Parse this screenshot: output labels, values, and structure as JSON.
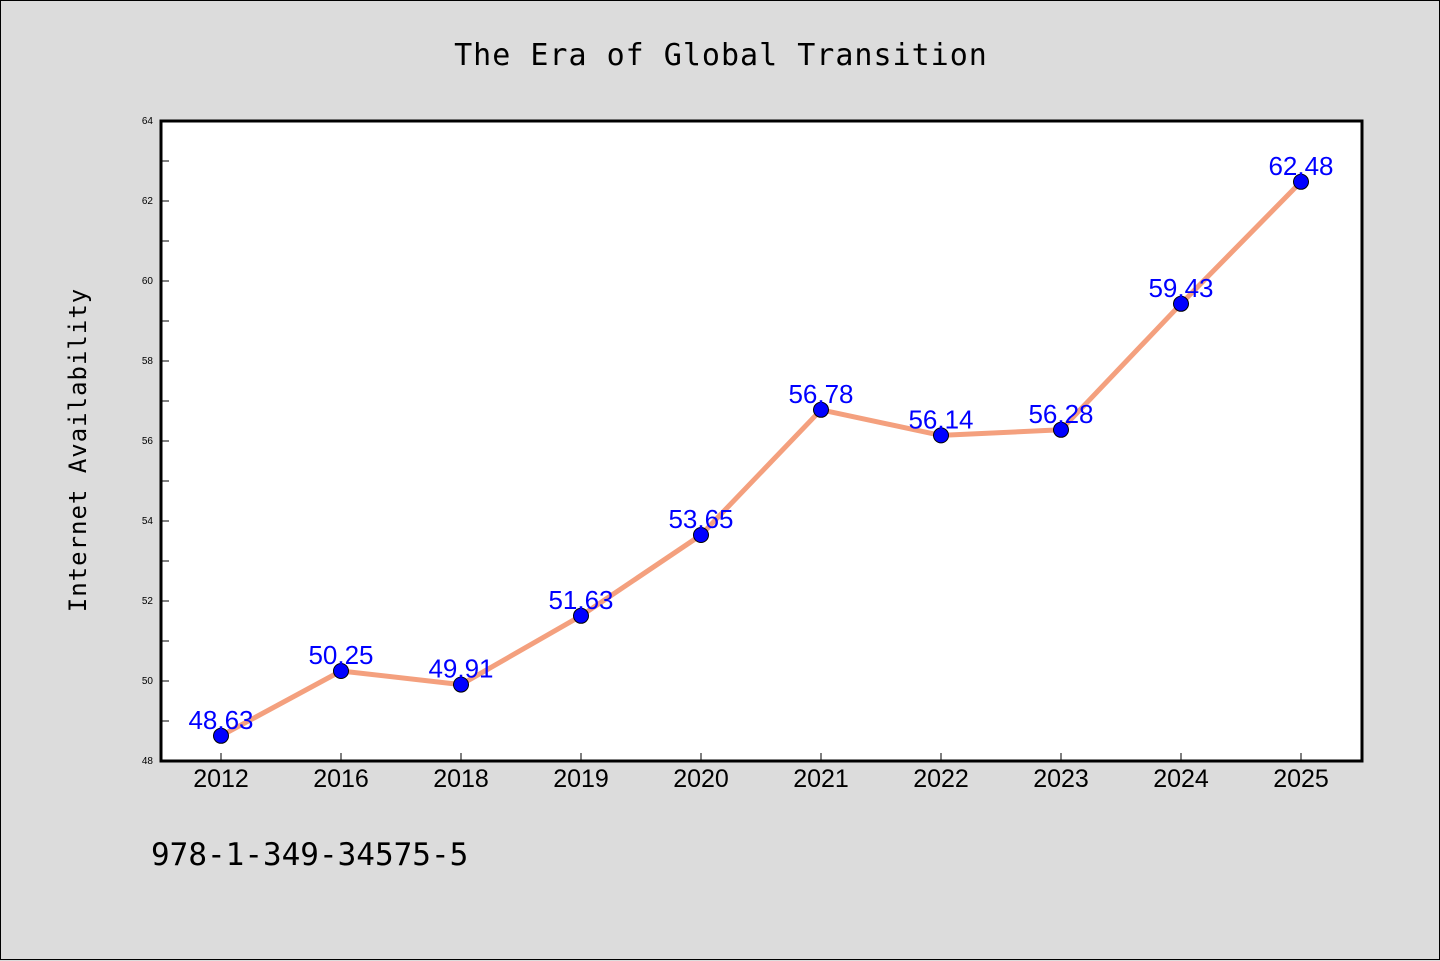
{
  "chart_data": {
    "type": "line",
    "title": "The Era of Global Transition",
    "xlabel": "",
    "ylabel": "Internet Availability",
    "categories": [
      "2012",
      "2016",
      "2018",
      "2019",
      "2020",
      "2021",
      "2022",
      "2023",
      "2024",
      "2025"
    ],
    "series": [
      {
        "values": [
          48.63,
          50.25,
          49.91,
          51.63,
          53.65,
          56.78,
          56.14,
          56.28,
          59.43,
          62.48
        ]
      }
    ],
    "data_labels": [
      "48.63",
      "50.25",
      "49.91",
      "51.63",
      "53.65",
      "56.78",
      "56.14",
      "56.28",
      "59.43",
      "62.48"
    ],
    "ylim": [
      48,
      64
    ],
    "yticks": [
      48,
      50,
      52,
      54,
      56,
      58,
      60,
      62,
      64
    ],
    "grid": false,
    "legend": "none",
    "colors": {
      "line": "#f4a07e",
      "marker": "#0000ff",
      "label": "#0000ff",
      "background": "#dcdcdc",
      "plot": "#ffffff"
    }
  },
  "footer": {
    "isbn": "978-1-349-34575-5"
  }
}
